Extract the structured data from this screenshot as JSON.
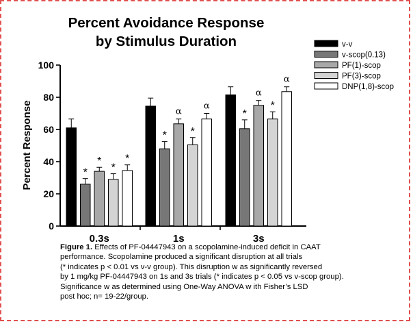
{
  "chart_data": {
    "type": "bar",
    "title": [
      "Percent Avoidance Response",
      "by Stimulus Duration"
    ],
    "ylabel": "Percent  Response",
    "xlabel": "",
    "ylim": [
      0,
      100
    ],
    "yticks": [
      0,
      20,
      40,
      60,
      80,
      100
    ],
    "categories": [
      "0.3s",
      "1s",
      "3s"
    ],
    "series": [
      {
        "name": "v-v",
        "color": "#000000",
        "values": [
          61,
          74.5,
          81.5
        ],
        "errors": [
          5.5,
          5,
          5
        ],
        "annotations": [
          "",
          "",
          ""
        ]
      },
      {
        "name": "v-scop(0.13)",
        "color": "#777777",
        "values": [
          26,
          48,
          60.5
        ],
        "errors": [
          3.5,
          4.5,
          5.5
        ],
        "annotations": [
          "*",
          "*",
          "*"
        ]
      },
      {
        "name": "PF(1)-scop",
        "color": "#a8a8a8",
        "values": [
          34,
          63.5,
          75
        ],
        "errors": [
          2.5,
          3,
          3
        ],
        "annotations": [
          "*",
          "α",
          "α"
        ]
      },
      {
        "name": "PF(3)-scop",
        "color": "#d4d4d4",
        "values": [
          29,
          50.5,
          66.5
        ],
        "errors": [
          3.5,
          4.5,
          4.5
        ],
        "annotations": [
          "*",
          "*",
          "*"
        ]
      },
      {
        "name": "DNP(1,8)-scop",
        "color": "#ffffff",
        "values": [
          34.5,
          66.5,
          83.5
        ],
        "errors": [
          3.5,
          3.5,
          3
        ],
        "annotations": [
          "*",
          "α",
          "α"
        ]
      }
    ],
    "legend_position": "top-right",
    "grid": false
  },
  "caption": {
    "label": "Figure 1.",
    "text": " Effects of PF-04447943  on a scopolamine-induced deficit in CAAT\n performance. Scopolamine produced a significant disruption at all trials\n(* indicates p < 0.01 vs v-v group). This disruption w as significantly reversed\nby 1 mg/kg PF-04447943 on 1s and 3s trials (* indicates p < 0.05 vs v-scop group).\nSignificance w as determined using One-Way ANOVA w ith Fisher’s LSD\npost hoc; n= 19-22/group."
  }
}
